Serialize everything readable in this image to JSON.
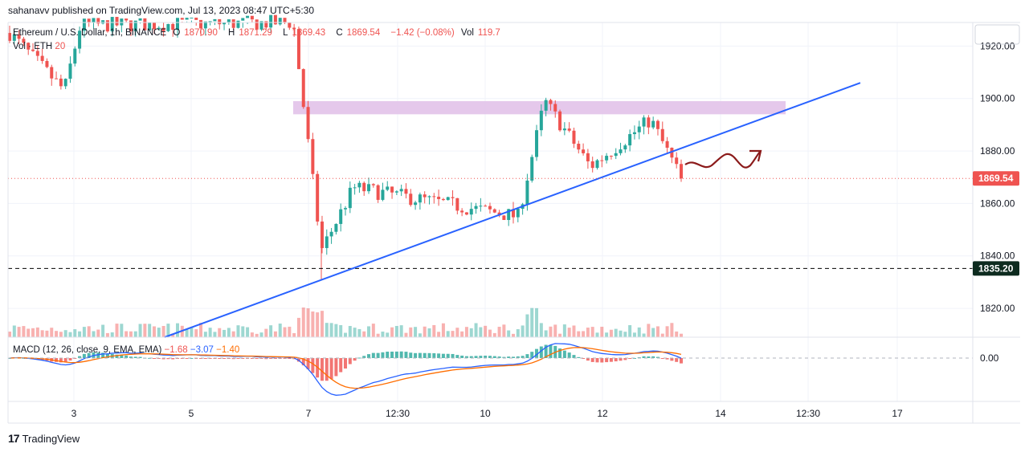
{
  "publish_info": "sahanavv published on TradingView.com, Jul 13, 2023 08:47 UTC+5:30",
  "legend": {
    "symbol": "Ethereum / U.S. Dollar, 1h, BINANCE",
    "o_label": "O",
    "o_value": "1870.90",
    "h_label": "H",
    "h_value": "1871.29",
    "l_label": "L",
    "l_value": "1869.43",
    "c_label": "C",
    "c_value": "1869.54",
    "change": "−1.42 (−0.08%)",
    "vol_label": "Vol",
    "vol_value": "119.7",
    "vol_line": "Vol · ETH",
    "vol_line_value": "20"
  },
  "macd_legend": {
    "label": "MACD (12, 26, close, 9, EMA, EMA)",
    "hist": "−1.68",
    "macd": "−3.07",
    "signal": "−1.40"
  },
  "price_axis": {
    "ticks": [
      "1920.00",
      "1900.00",
      "1880.00",
      "1860.00",
      "1840.00",
      "1820.00"
    ],
    "current_price": "1869.54",
    "support_price": "1835.20"
  },
  "macd_axis": {
    "ticks": [
      "0.00"
    ]
  },
  "time_axis": {
    "ticks": [
      "3",
      "5",
      "7",
      "12:30",
      "10",
      "12",
      "14",
      "12:30",
      "17"
    ]
  },
  "footer": {
    "logo": "17",
    "brand": "TradingView"
  },
  "colors": {
    "up": "#26a69a",
    "down": "#ef5350",
    "trendline": "#2962ff",
    "zone": "#e1bee7",
    "support": "#000000",
    "arrow": "#8b1a1a",
    "macd": "#2962ff",
    "signal": "#ff6d00",
    "current_badge": "#ef5350",
    "support_badge": "#0d2b1f"
  },
  "chart_data": {
    "type": "candlestick",
    "ylim": [
      1809,
      1929
    ],
    "x_ticks": [
      "3",
      "5",
      "7",
      "12:30",
      "10",
      "12",
      "14",
      "12:30",
      "17"
    ],
    "key_points": [
      {
        "label": "start",
        "price": 1925
      },
      {
        "label": "drop",
        "price": 1901
      },
      {
        "label": "spike",
        "price": 1928
      },
      {
        "label": "low",
        "price": 1831
      },
      {
        "label": "recovery",
        "price": 1868
      },
      {
        "label": "pullback",
        "price": 1855
      },
      {
        "label": "high",
        "price": 1901
      },
      {
        "label": "consolidation",
        "price": 1880
      },
      {
        "label": "retest",
        "price": 1893
      },
      {
        "label": "last",
        "price": 1869.54
      }
    ],
    "resistance_zone": [
      1894,
      1899
    ],
    "support_level": 1835.2,
    "current_price": 1869.54,
    "trendline": {
      "start_price": 1805,
      "end_price": 1906
    },
    "macd": {
      "macd": -3.07,
      "signal": -1.4,
      "histogram": -1.68
    }
  }
}
